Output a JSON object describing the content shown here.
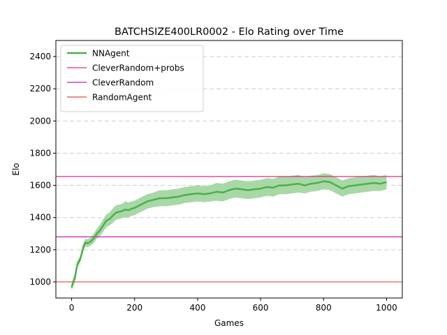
{
  "chart_data": {
    "type": "line",
    "title": "BATCHSIZE400LR0002 - Elo Rating over Time",
    "xlabel": "Games",
    "ylabel": "Elo",
    "xlim": [
      -50,
      1050
    ],
    "ylim": [
      900,
      2500
    ],
    "xticks": [
      0,
      200,
      400,
      600,
      800,
      1000
    ],
    "yticks": [
      1000,
      1200,
      1400,
      1600,
      1800,
      2000,
      2200,
      2400
    ],
    "grid": "horizontal dashed",
    "legend_position": "top-left",
    "series": [
      {
        "name": "NNAgent",
        "kind": "line-with-band",
        "color": "#4daf4a",
        "band_color": "#a8d8a6",
        "x": [
          0,
          5,
          10,
          15,
          20,
          25,
          30,
          35,
          40,
          45,
          50,
          60,
          70,
          80,
          90,
          100,
          110,
          120,
          130,
          140,
          150,
          160,
          170,
          180,
          190,
          200,
          220,
          240,
          260,
          280,
          300,
          320,
          340,
          360,
          380,
          400,
          420,
          440,
          460,
          480,
          500,
          520,
          540,
          560,
          580,
          600,
          620,
          640,
          660,
          680,
          700,
          720,
          740,
          760,
          780,
          800,
          820,
          840,
          860,
          880,
          900,
          920,
          940,
          960,
          980,
          1000
        ],
        "values": [
          965,
          1000,
          1020,
          1080,
          1120,
          1130,
          1160,
          1200,
          1230,
          1245,
          1240,
          1250,
          1270,
          1300,
          1320,
          1350,
          1380,
          1390,
          1410,
          1430,
          1435,
          1440,
          1450,
          1445,
          1455,
          1460,
          1480,
          1500,
          1510,
          1520,
          1520,
          1525,
          1530,
          1540,
          1545,
          1550,
          1545,
          1550,
          1560,
          1555,
          1570,
          1580,
          1575,
          1570,
          1575,
          1580,
          1590,
          1585,
          1600,
          1600,
          1605,
          1610,
          1600,
          1610,
          1615,
          1625,
          1620,
          1600,
          1580,
          1595,
          1600,
          1605,
          1610,
          1615,
          1610,
          1620
        ],
        "lower": [
          945,
          975,
          995,
          1060,
          1100,
          1110,
          1140,
          1175,
          1205,
          1220,
          1215,
          1225,
          1240,
          1270,
          1285,
          1310,
          1340,
          1350,
          1365,
          1385,
          1390,
          1395,
          1400,
          1400,
          1410,
          1415,
          1435,
          1455,
          1465,
          1470,
          1470,
          1475,
          1480,
          1490,
          1495,
          1500,
          1495,
          1500,
          1505,
          1500,
          1515,
          1525,
          1520,
          1515,
          1520,
          1525,
          1535,
          1530,
          1545,
          1545,
          1550,
          1555,
          1550,
          1560,
          1565,
          1575,
          1570,
          1550,
          1530,
          1545,
          1550,
          1555,
          1560,
          1565,
          1565,
          1575
        ],
        "upper": [
          985,
          1025,
          1045,
          1100,
          1140,
          1150,
          1180,
          1225,
          1255,
          1270,
          1265,
          1275,
          1300,
          1330,
          1355,
          1390,
          1420,
          1430,
          1455,
          1475,
          1480,
          1485,
          1500,
          1495,
          1500,
          1505,
          1525,
          1545,
          1555,
          1570,
          1570,
          1575,
          1580,
          1590,
          1595,
          1600,
          1595,
          1600,
          1615,
          1610,
          1625,
          1635,
          1630,
          1625,
          1630,
          1635,
          1645,
          1640,
          1655,
          1655,
          1660,
          1665,
          1650,
          1660,
          1665,
          1675,
          1670,
          1650,
          1630,
          1645,
          1650,
          1655,
          1660,
          1665,
          1655,
          1665
        ]
      },
      {
        "name": "CleverRandom+probs",
        "kind": "hline",
        "color": "#e7298a",
        "y": 1655
      },
      {
        "name": "CleverRandom",
        "kind": "hline",
        "color": "#c51bbd",
        "y": 1280
      },
      {
        "name": "RandomAgent",
        "kind": "hline",
        "color": "#e8493f",
        "y": 1000
      }
    ]
  }
}
